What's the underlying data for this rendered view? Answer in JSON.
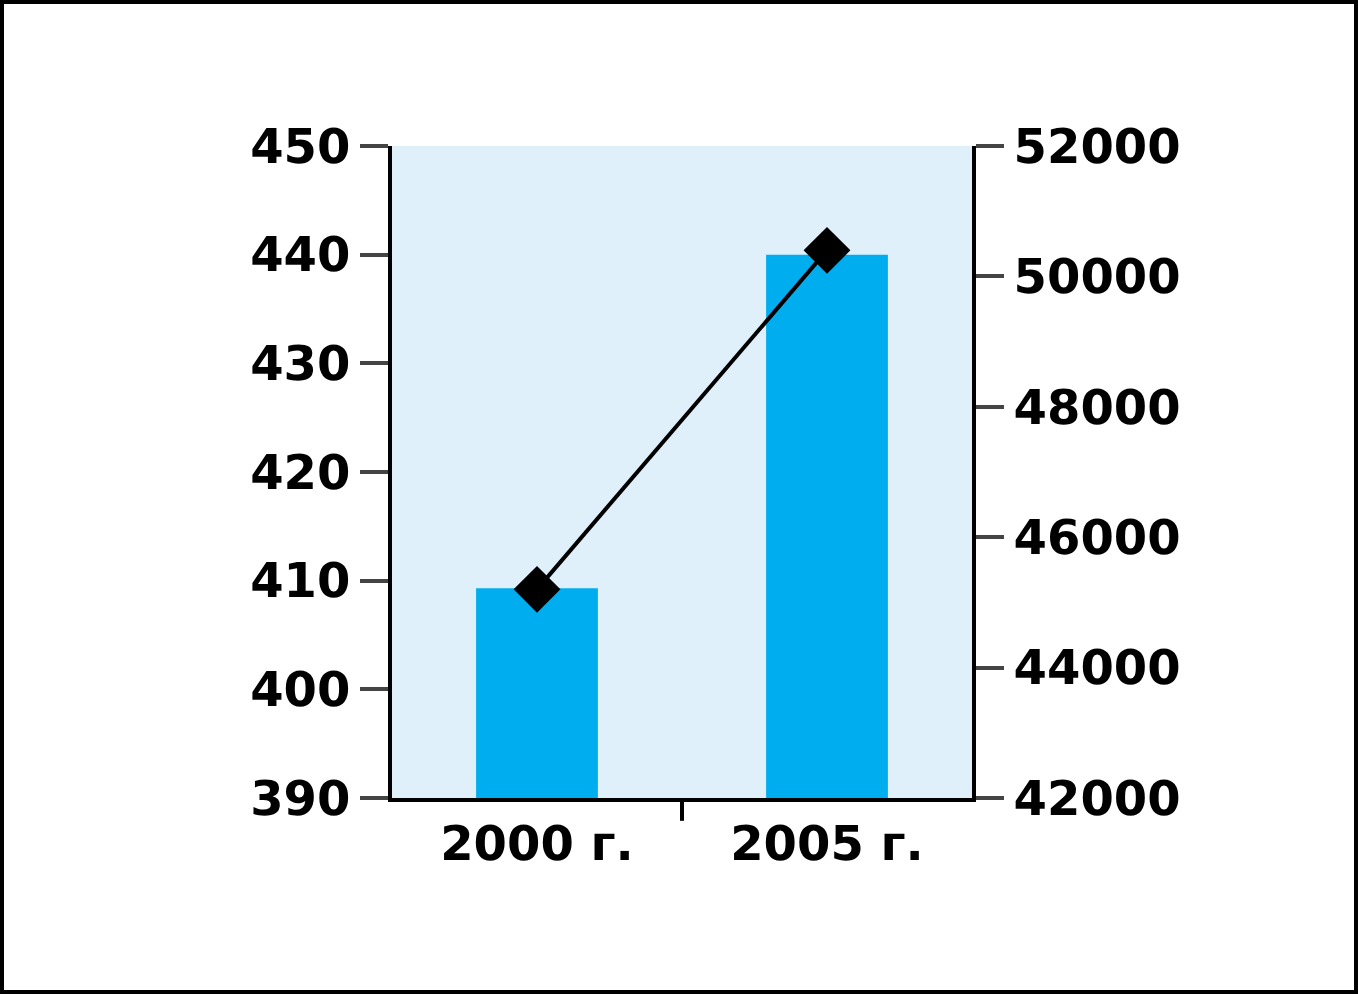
{
  "chart_data": {
    "type": "bar",
    "categories": [
      "2000 г.",
      "2005 г."
    ],
    "series": [
      {
        "color": "#00aeef",
        "values": [
          409.3,
          440
        ]
      },
      {
        "type": "line",
        "axis": "y2",
        "color": "#000000",
        "values": [
          45200,
          50400
        ]
      }
    ],
    "ylim": [
      390,
      450
    ],
    "yticks": [
      390,
      400,
      410,
      420,
      430,
      440,
      450
    ],
    "y2lim": [
      42000,
      52000
    ],
    "y2ticks": [
      42000,
      44000,
      46000,
      48000,
      50000,
      52000
    ],
    "marker": "diamond",
    "line_style": "solid",
    "grid": false
  }
}
